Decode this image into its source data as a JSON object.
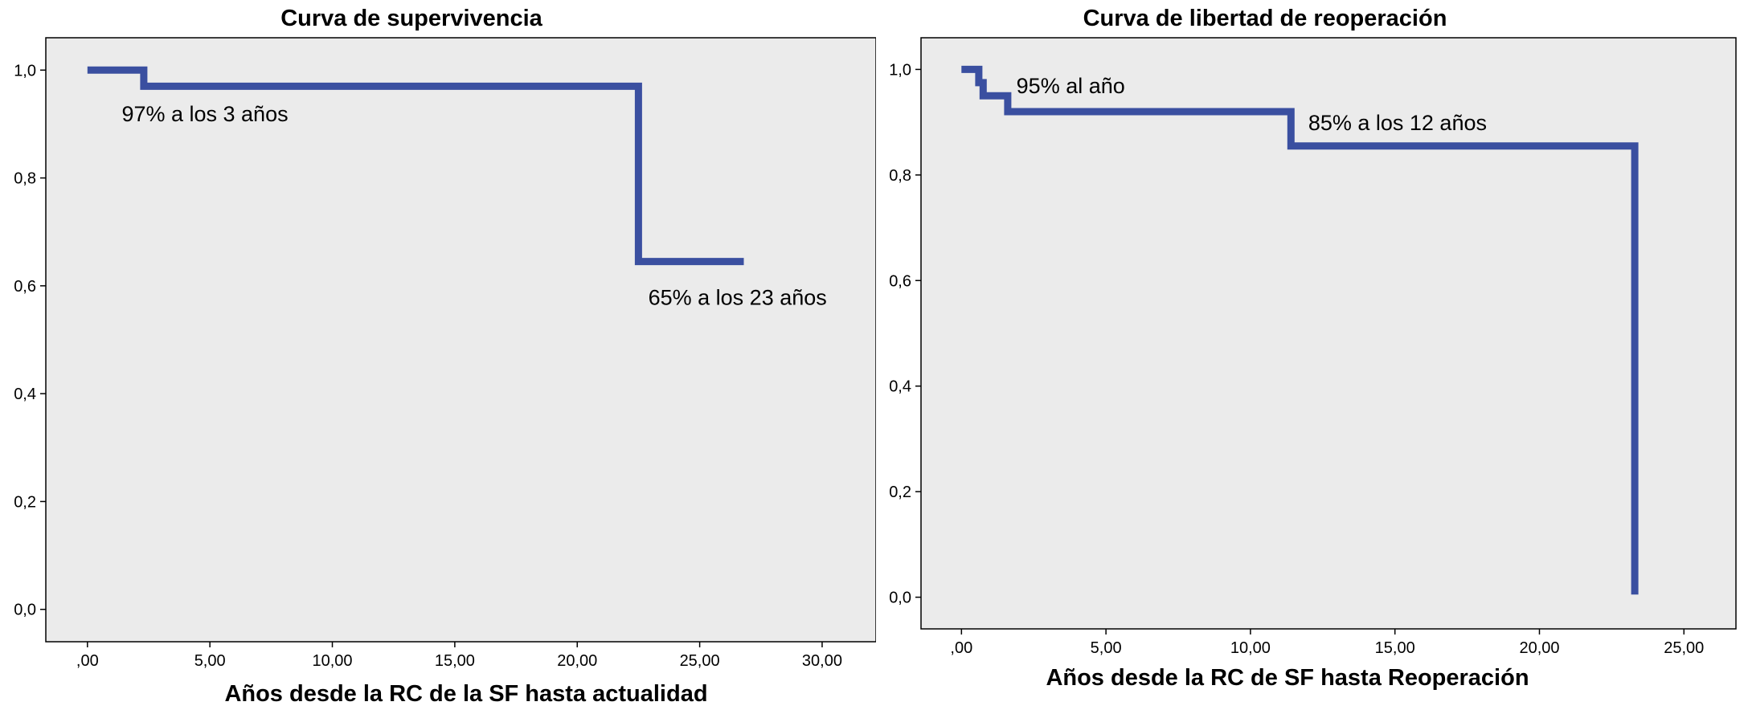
{
  "chart_data": [
    {
      "type": "line",
      "step": true,
      "title": "Curva de supervivencia",
      "xlabel": "Años desde la RC de la SF hasta actualidad",
      "ylabel": "",
      "xlim": [
        -1.7,
        32.2
      ],
      "ylim": [
        -0.06,
        1.06
      ],
      "xticks": [
        0,
        5,
        10,
        15,
        20,
        25,
        30
      ],
      "xtick_labels": [
        ",00",
        "5,00",
        "10,00",
        "15,00",
        "20,00",
        "25,00",
        "30,00"
      ],
      "yticks": [
        0,
        0.2,
        0.4,
        0.6,
        0.8,
        1.0
      ],
      "ytick_labels": [
        "0,0",
        "0,2",
        "0,4",
        "0,6",
        "0,8",
        "1,0"
      ],
      "grid": false,
      "series": [
        {
          "color": "#3a4fa0",
          "x": [
            0,
            2.3,
            2.3,
            22.5,
            22.5,
            26.8
          ],
          "y": [
            1.0,
            1.0,
            0.97,
            0.97,
            0.645,
            0.645
          ]
        }
      ],
      "annotations": [
        {
          "text": "97% a los 3 años",
          "x": 1.4,
          "y": 0.905
        },
        {
          "text": "65% a los 23 años",
          "x": 22.9,
          "y": 0.565
        }
      ]
    },
    {
      "type": "line",
      "step": true,
      "title": "Curva de libertad de reoperación",
      "xlabel": "Años desde la RC de SF hasta Reoperación",
      "ylabel": "",
      "xlim": [
        -1.4,
        26.8
      ],
      "ylim": [
        -0.06,
        1.06
      ],
      "xticks": [
        0,
        5,
        10,
        15,
        20,
        25
      ],
      "xtick_labels": [
        ",00",
        "5,00",
        "10,00",
        "15,00",
        "20,00",
        "25,00"
      ],
      "yticks": [
        0,
        0.2,
        0.4,
        0.6,
        0.8,
        1.0
      ],
      "ytick_labels": [
        "0,0",
        "0,2",
        "0,4",
        "0,6",
        "0,8",
        "1,0"
      ],
      "grid": false,
      "series": [
        {
          "color": "#3a4fa0",
          "x": [
            0,
            0.6,
            0.6,
            0.75,
            0.75,
            1.6,
            1.6,
            11.4,
            11.4,
            23.3,
            23.3
          ],
          "y": [
            1.0,
            1.0,
            0.975,
            0.975,
            0.95,
            0.95,
            0.92,
            0.92,
            0.855,
            0.855,
            0.005
          ]
        }
      ],
      "annotations": [
        {
          "text": "95% al año",
          "x": 1.9,
          "y": 0.955
        },
        {
          "text": "85% a los 12 años",
          "x": 12.0,
          "y": 0.885
        }
      ]
    }
  ]
}
